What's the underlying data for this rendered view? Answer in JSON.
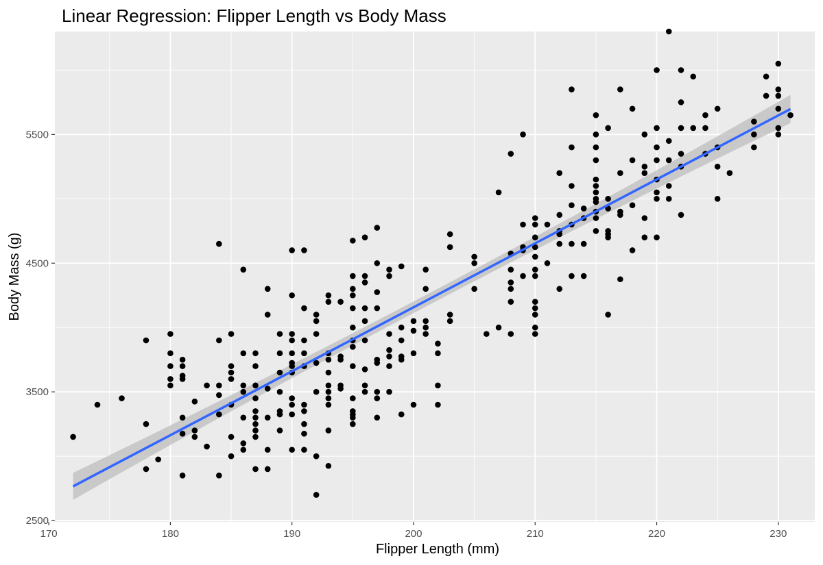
{
  "chart_data": {
    "type": "scatter",
    "title": "Linear Regression: Flipper Length vs Body Mass",
    "xlabel": "Flipper Length (mm)",
    "ylabel": "Body Mass (g)",
    "xlim": [
      170.5,
      233.0
    ],
    "ylim": [
      2490,
      6300
    ],
    "x_ticks": [
      170,
      180,
      190,
      200,
      210,
      220,
      230
    ],
    "y_ticks": [
      2500,
      3500,
      4500,
      5500
    ],
    "grid": true,
    "colors": {
      "panel": "#ebebeb",
      "grid": "#ffffff",
      "points": "#000000",
      "regression_line": "#3366ff",
      "confidence_band": "#bdbdbd"
    },
    "regression": {
      "x_range": [
        172,
        231
      ],
      "slope": 49.69,
      "intercept": -5780.8,
      "band_halfwidth_at_ends": 110,
      "band_halfwidth_at_center": 45,
      "band_center_x": 200.9
    },
    "points": [
      [
        172,
        3150
      ],
      [
        174,
        3400
      ],
      [
        176,
        3450
      ],
      [
        178,
        3900
      ],
      [
        178,
        3250
      ],
      [
        178,
        2900
      ],
      [
        179,
        2975
      ],
      [
        180,
        3950
      ],
      [
        180,
        3800
      ],
      [
        180,
        3700
      ],
      [
        180,
        3600
      ],
      [
        180,
        3550
      ],
      [
        181,
        3750
      ],
      [
        181,
        3700
      ],
      [
        181,
        3625
      ],
      [
        181,
        3600
      ],
      [
        181,
        3300
      ],
      [
        181,
        3175
      ],
      [
        181,
        2850
      ],
      [
        182,
        3425
      ],
      [
        182,
        3200
      ],
      [
        182,
        3150
      ],
      [
        183,
        3550
      ],
      [
        183,
        3075
      ],
      [
        184,
        4650
      ],
      [
        184,
        3900
      ],
      [
        184,
        3550
      ],
      [
        184,
        3475
      ],
      [
        184,
        3325
      ],
      [
        184,
        2850
      ],
      [
        185,
        3950
      ],
      [
        185,
        3700
      ],
      [
        185,
        3650
      ],
      [
        185,
        3600
      ],
      [
        185,
        3400
      ],
      [
        185,
        3150
      ],
      [
        185,
        3000
      ],
      [
        186,
        4450
      ],
      [
        186,
        3800
      ],
      [
        186,
        3550
      ],
      [
        186,
        3500
      ],
      [
        186,
        3300
      ],
      [
        186,
        3100
      ],
      [
        186,
        3050
      ],
      [
        187,
        3800
      ],
      [
        187,
        3700
      ],
      [
        187,
        3550
      ],
      [
        187,
        3450
      ],
      [
        187,
        3350
      ],
      [
        187,
        3300
      ],
      [
        187,
        3250
      ],
      [
        187,
        3200
      ],
      [
        187,
        3150
      ],
      [
        187,
        2900
      ],
      [
        188,
        4300
      ],
      [
        188,
        4100
      ],
      [
        188,
        3525
      ],
      [
        188,
        3300
      ],
      [
        188,
        3050
      ],
      [
        188,
        2900
      ],
      [
        189,
        3950
      ],
      [
        189,
        3800
      ],
      [
        189,
        3650
      ],
      [
        189,
        3500
      ],
      [
        189,
        3350
      ],
      [
        189,
        3325
      ],
      [
        189,
        3200
      ],
      [
        190,
        4600
      ],
      [
        190,
        4250
      ],
      [
        190,
        3950
      ],
      [
        190,
        3900
      ],
      [
        190,
        3800
      ],
      [
        190,
        3725
      ],
      [
        190,
        3700
      ],
      [
        190,
        3650
      ],
      [
        190,
        3450
      ],
      [
        190,
        3400
      ],
      [
        190,
        3325
      ],
      [
        190,
        3050
      ],
      [
        191,
        4600
      ],
      [
        191,
        4150
      ],
      [
        191,
        3900
      ],
      [
        191,
        3800
      ],
      [
        191,
        3700
      ],
      [
        191,
        3400
      ],
      [
        191,
        3350
      ],
      [
        191,
        3250
      ],
      [
        191,
        3175
      ],
      [
        191,
        3050
      ],
      [
        192,
        4100
      ],
      [
        192,
        4050
      ],
      [
        192,
        3950
      ],
      [
        192,
        3725
      ],
      [
        192,
        3500
      ],
      [
        192,
        3000
      ],
      [
        192,
        2700
      ],
      [
        193,
        4250
      ],
      [
        193,
        4200
      ],
      [
        193,
        3800
      ],
      [
        193,
        3750
      ],
      [
        193,
        3650
      ],
      [
        193,
        3550
      ],
      [
        193,
        3500
      ],
      [
        193,
        3450
      ],
      [
        193,
        3400
      ],
      [
        193,
        3200
      ],
      [
        193,
        2925
      ],
      [
        194,
        4200
      ],
      [
        194,
        3775
      ],
      [
        194,
        3750
      ],
      [
        194,
        3550
      ],
      [
        194,
        3525
      ],
      [
        195,
        4675
      ],
      [
        195,
        4400
      ],
      [
        195,
        4300
      ],
      [
        195,
        4250
      ],
      [
        195,
        4150
      ],
      [
        195,
        4000
      ],
      [
        195,
        3900
      ],
      [
        195,
        3850
      ],
      [
        195,
        3700
      ],
      [
        195,
        3450
      ],
      [
        195,
        3350
      ],
      [
        195,
        3325
      ],
      [
        195,
        3300
      ],
      [
        195,
        3250
      ],
      [
        196,
        4700
      ],
      [
        196,
        4400
      ],
      [
        196,
        4350
      ],
      [
        196,
        4150
      ],
      [
        196,
        4050
      ],
      [
        196,
        3900
      ],
      [
        196,
        3675
      ],
      [
        196,
        3550
      ],
      [
        196,
        3500
      ],
      [
        197,
        4775
      ],
      [
        197,
        4500
      ],
      [
        197,
        4275
      ],
      [
        197,
        4150
      ],
      [
        197,
        3750
      ],
      [
        197,
        3725
      ],
      [
        197,
        3500
      ],
      [
        197,
        3450
      ],
      [
        197,
        3300
      ],
      [
        198,
        4450
      ],
      [
        198,
        4400
      ],
      [
        198,
        3950
      ],
      [
        198,
        3825
      ],
      [
        198,
        3775
      ],
      [
        198,
        3700
      ],
      [
        198,
        3500
      ],
      [
        199,
        4475
      ],
      [
        199,
        4000
      ],
      [
        199,
        3900
      ],
      [
        199,
        3775
      ],
      [
        199,
        3750
      ],
      [
        199,
        3325
      ],
      [
        200,
        4050
      ],
      [
        200,
        3975
      ],
      [
        200,
        3800
      ],
      [
        200,
        3400
      ],
      [
        201,
        4450
      ],
      [
        201,
        4300
      ],
      [
        201,
        4050
      ],
      [
        201,
        4000
      ],
      [
        201,
        3950
      ],
      [
        202,
        3875
      ],
      [
        202,
        3800
      ],
      [
        202,
        3550
      ],
      [
        202,
        3400
      ],
      [
        203,
        4725
      ],
      [
        203,
        4625
      ],
      [
        203,
        4100
      ],
      [
        203,
        4050
      ],
      [
        205,
        4550
      ],
      [
        205,
        4500
      ],
      [
        205,
        4300
      ],
      [
        206,
        3950
      ],
      [
        207,
        5050
      ],
      [
        207,
        4000
      ],
      [
        208,
        5350
      ],
      [
        208,
        4575
      ],
      [
        208,
        4450
      ],
      [
        208,
        4350
      ],
      [
        208,
        4300
      ],
      [
        208,
        4200
      ],
      [
        208,
        3950
      ],
      [
        209,
        5500
      ],
      [
        209,
        4800
      ],
      [
        209,
        4625
      ],
      [
        209,
        4600
      ],
      [
        209,
        4400
      ],
      [
        210,
        4850
      ],
      [
        210,
        4800
      ],
      [
        210,
        4700
      ],
      [
        210,
        4625
      ],
      [
        210,
        4550
      ],
      [
        210,
        4450
      ],
      [
        210,
        4400
      ],
      [
        210,
        4200
      ],
      [
        210,
        4150
      ],
      [
        210,
        4100
      ],
      [
        210,
        4000
      ],
      [
        210,
        3950
      ],
      [
        211,
        4800
      ],
      [
        211,
        4500
      ],
      [
        212,
        5200
      ],
      [
        212,
        4875
      ],
      [
        212,
        4750
      ],
      [
        212,
        4725
      ],
      [
        212,
        4650
      ],
      [
        212,
        4300
      ],
      [
        213,
        5850
      ],
      [
        213,
        5400
      ],
      [
        213,
        5100
      ],
      [
        213,
        4950
      ],
      [
        213,
        4800
      ],
      [
        213,
        4650
      ],
      [
        213,
        4400
      ],
      [
        214,
        4925
      ],
      [
        214,
        4850
      ],
      [
        214,
        4650
      ],
      [
        214,
        4400
      ],
      [
        215,
        5650
      ],
      [
        215,
        5500
      ],
      [
        215,
        5400
      ],
      [
        215,
        5300
      ],
      [
        215,
        5150
      ],
      [
        215,
        5100
      ],
      [
        215,
        5050
      ],
      [
        215,
        5000
      ],
      [
        215,
        4975
      ],
      [
        215,
        4900
      ],
      [
        215,
        4850
      ],
      [
        215,
        4750
      ],
      [
        216,
        5550
      ],
      [
        216,
        5000
      ],
      [
        216,
        4925
      ],
      [
        216,
        4750
      ],
      [
        216,
        4725
      ],
      [
        216,
        4700
      ],
      [
        216,
        4100
      ],
      [
        217,
        5850
      ],
      [
        217,
        5200
      ],
      [
        217,
        4900
      ],
      [
        217,
        4875
      ],
      [
        217,
        4375
      ],
      [
        218,
        5700
      ],
      [
        218,
        5300
      ],
      [
        218,
        4950
      ],
      [
        218,
        4600
      ],
      [
        219,
        5500
      ],
      [
        219,
        5250
      ],
      [
        219,
        5200
      ],
      [
        219,
        4850
      ],
      [
        219,
        4700
      ],
      [
        220,
        6000
      ],
      [
        220,
        5550
      ],
      [
        220,
        5400
      ],
      [
        220,
        5300
      ],
      [
        220,
        5150
      ],
      [
        220,
        5050
      ],
      [
        220,
        5000
      ],
      [
        220,
        4700
      ],
      [
        221,
        6300
      ],
      [
        221,
        5450
      ],
      [
        221,
        5300
      ],
      [
        221,
        5100
      ],
      [
        221,
        5000
      ],
      [
        222,
        6000
      ],
      [
        222,
        5750
      ],
      [
        222,
        5550
      ],
      [
        222,
        5350
      ],
      [
        222,
        5250
      ],
      [
        222,
        4875
      ],
      [
        223,
        5950
      ],
      [
        223,
        5550
      ],
      [
        224,
        5650
      ],
      [
        224,
        5550
      ],
      [
        224,
        5350
      ],
      [
        225,
        5700
      ],
      [
        225,
        5400
      ],
      [
        225,
        5250
      ],
      [
        225,
        5000
      ],
      [
        226,
        5200
      ],
      [
        228,
        5600
      ],
      [
        228,
        5500
      ],
      [
        228,
        5400
      ],
      [
        229,
        5950
      ],
      [
        229,
        5800
      ],
      [
        230,
        6050
      ],
      [
        230,
        5850
      ],
      [
        230,
        5800
      ],
      [
        230,
        5700
      ],
      [
        230,
        5550
      ],
      [
        230,
        5500
      ],
      [
        231,
        5650
      ]
    ]
  }
}
